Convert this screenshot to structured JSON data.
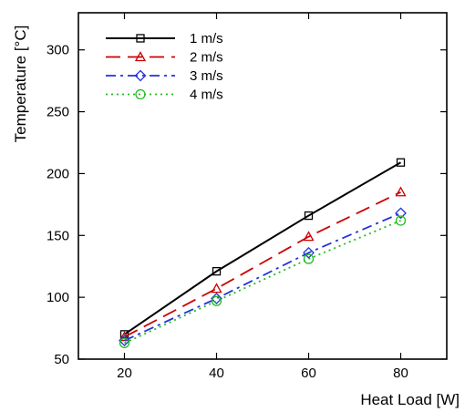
{
  "chart_data": {
    "type": "line",
    "xlabel": "Heat Load [W]",
    "ylabel": "Temperature [°C]",
    "xlim": [
      10,
      90
    ],
    "ylim": [
      50,
      330
    ],
    "xticks": [
      20,
      40,
      60,
      80
    ],
    "yticks": [
      50,
      100,
      150,
      200,
      250,
      300
    ],
    "legend_position": "top-left",
    "grid": false,
    "x": [
      20,
      40,
      60,
      80
    ],
    "series": [
      {
        "name": "1 m/s",
        "values": [
          70,
          121,
          166,
          209
        ],
        "color": "#000000",
        "dash": "solid",
        "marker": "square"
      },
      {
        "name": "2 m/s",
        "values": [
          68,
          107,
          149,
          185
        ],
        "color": "#cc0000",
        "dash": "long-dash",
        "marker": "triangle"
      },
      {
        "name": "3 m/s",
        "values": [
          65,
          99,
          136,
          168
        ],
        "color": "#2233dd",
        "dash": "dash-dot",
        "marker": "diamond"
      },
      {
        "name": "4 m/s",
        "values": [
          63,
          97,
          131,
          162
        ],
        "color": "#22bb22",
        "dash": "dotted",
        "marker": "circle"
      }
    ]
  }
}
